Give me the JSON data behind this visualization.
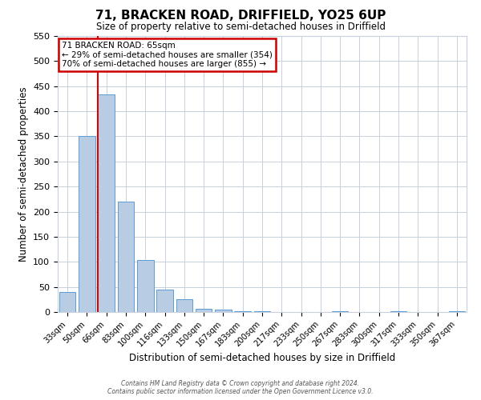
{
  "title": "71, BRACKEN ROAD, DRIFFIELD, YO25 6UP",
  "subtitle": "Size of property relative to semi-detached houses in Driffield",
  "xlabel": "Distribution of semi-detached houses by size in Driffield",
  "ylabel": "Number of semi-detached properties",
  "bar_labels": [
    "33sqm",
    "50sqm",
    "66sqm",
    "83sqm",
    "100sqm",
    "116sqm",
    "133sqm",
    "150sqm",
    "167sqm",
    "183sqm",
    "200sqm",
    "217sqm",
    "233sqm",
    "250sqm",
    "267sqm",
    "283sqm",
    "300sqm",
    "317sqm",
    "333sqm",
    "350sqm",
    "367sqm"
  ],
  "bar_values": [
    40,
    350,
    433,
    220,
    103,
    44,
    26,
    7,
    5,
    2,
    1,
    0,
    0,
    0,
    1,
    0,
    0,
    1,
    0,
    0,
    2
  ],
  "bar_color": "#b8cce4",
  "bar_edge_color": "#5b9bd5",
  "vline_color": "#dd0000",
  "annotation_title": "71 BRACKEN ROAD: 65sqm",
  "annotation_line1": "← 29% of semi-detached houses are smaller (354)",
  "annotation_line2": "70% of semi-detached houses are larger (855) →",
  "ylim": [
    0,
    550
  ],
  "yticks": [
    0,
    50,
    100,
    150,
    200,
    250,
    300,
    350,
    400,
    450,
    500,
    550
  ],
  "footer1": "Contains HM Land Registry data © Crown copyright and database right 2024.",
  "footer2": "Contains public sector information licensed under the Open Government Licence v3.0.",
  "bg_color": "#ffffff",
  "grid_color": "#c8d0de",
  "annotation_box_color": "#ffffff",
  "annotation_box_edge": "#cc0000"
}
